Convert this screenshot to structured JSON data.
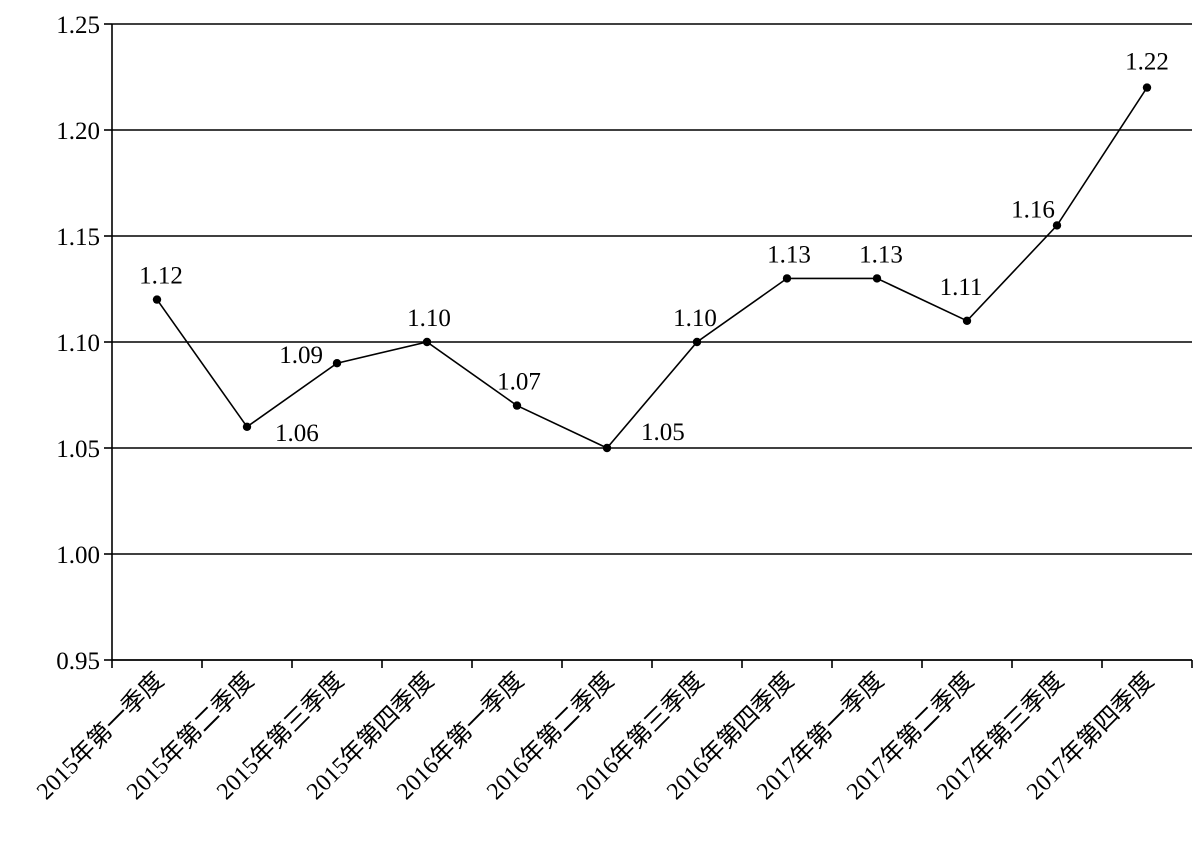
{
  "chart_data": {
    "type": "line",
    "title": "",
    "xlabel": "",
    "ylabel": "",
    "categories": [
      "2015年第一季度",
      "2015年第二季度",
      "2015年第三季度",
      "2015年第四季度",
      "2016年第一季度",
      "2016年第二季度",
      "2016年第三季度",
      "2016年第四季度",
      "2017年第一季度",
      "2017年第二季度",
      "2017年第三季度",
      "2017年第四季度"
    ],
    "series": [
      {
        "values": [
          1.12,
          1.06,
          1.09,
          1.1,
          1.07,
          1.05,
          1.1,
          1.13,
          1.13,
          1.11,
          1.155,
          1.22
        ],
        "labels": [
          "1.12",
          "1.06",
          "1.09",
          "1.10",
          "1.07",
          "1.05",
          "1.10",
          "1.13",
          "1.13",
          "1.11",
          "1.16",
          "1.22"
        ]
      }
    ],
    "ylim": [
      0.95,
      1.25
    ],
    "yticks": [
      "0.95",
      "1.00",
      "1.05",
      "1.10",
      "1.15",
      "1.20",
      "1.25"
    ],
    "grid": true,
    "legend": "none"
  }
}
